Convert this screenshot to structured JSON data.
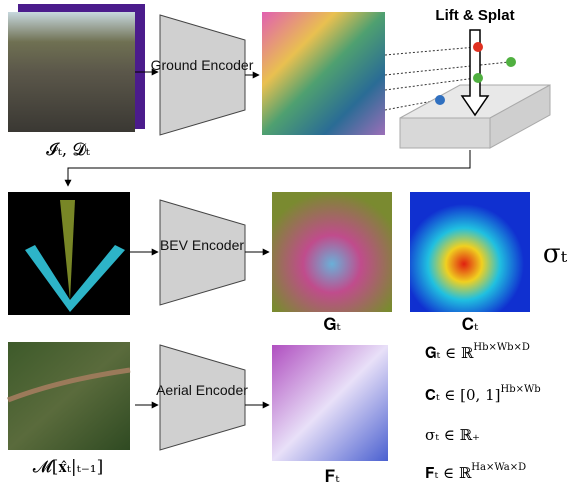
{
  "ground_encoder": {
    "label": "Ground Encoder",
    "input_label": "𝓘ₜ, 𝓓ₜ"
  },
  "lift_splat": {
    "label": "Lift & Splat"
  },
  "bev_encoder": {
    "label": "BEV Encoder",
    "output_label": "𝐆ₜ",
    "confidence_label": "𝐂ₜ",
    "sigma_label": "σₜ"
  },
  "aerial_encoder": {
    "label": "Aerial Encoder",
    "input_label": "𝓜[𝐱̂ₜ|ₜ₋₁]",
    "output_label": "𝐅ₜ"
  },
  "definitions": [
    {
      "lhs": "𝐆ₜ ∈ ℝ",
      "sup": "Hb×Wb×D"
    },
    {
      "lhs": "𝐂ₜ ∈ [0, 1]",
      "sup": "Hb×Wb"
    },
    {
      "lhs": "σₜ ∈ ℝ₊",
      "sup": ""
    },
    {
      "lhs": "𝐅ₜ ∈ ℝ",
      "sup": "Ha×Wa×D"
    }
  ]
}
